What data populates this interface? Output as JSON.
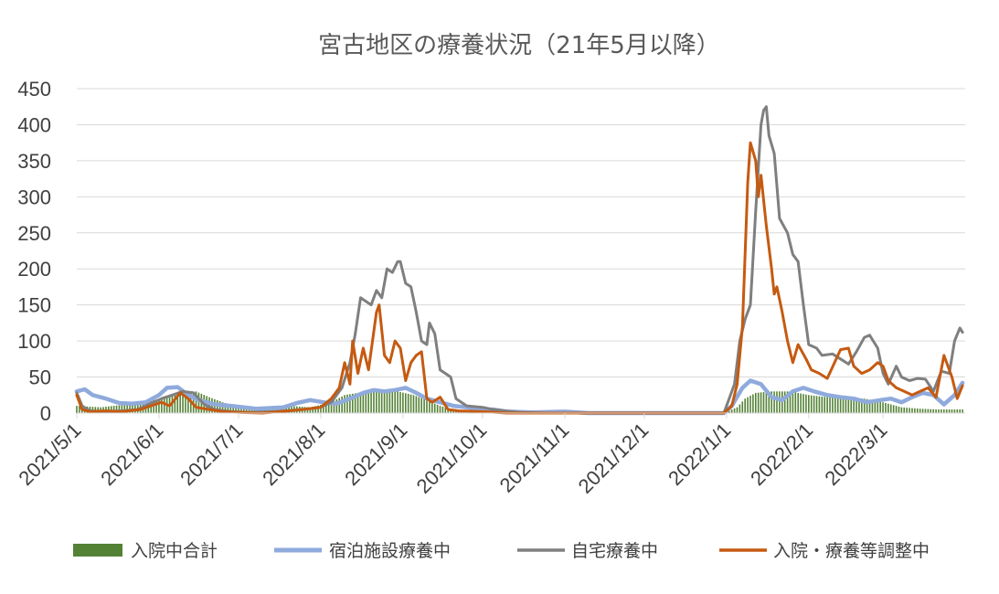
{
  "chart_data": {
    "type": "line",
    "title": "宮古地区の療養状況（21年5月以降）",
    "ylim": [
      0,
      450
    ],
    "yticks": [
      0,
      50,
      100,
      150,
      200,
      250,
      300,
      350,
      400,
      450
    ],
    "x_start": "2021-05-01",
    "x_end": "2022-03-31",
    "xticks": [
      "2021/5/1",
      "2021/6/1",
      "2021/7/1",
      "2021/8/1",
      "2021/9/1",
      "2021/10/1",
      "2021/11/1",
      "2021/12/1",
      "2022/1/1",
      "2022/2/1",
      "2022/3/1"
    ],
    "grid": true,
    "legend_position": "bottom",
    "series": [
      {
        "name": "入院中合計",
        "kind": "bar",
        "color": "#548235",
        "points": [
          [
            "2021-05-01",
            10
          ],
          [
            "2021-05-10",
            8
          ],
          [
            "2021-05-20",
            12
          ],
          [
            "2021-05-28",
            18
          ],
          [
            "2021-06-03",
            20
          ],
          [
            "2021-06-10",
            28
          ],
          [
            "2021-06-15",
            30
          ],
          [
            "2021-06-20",
            22
          ],
          [
            "2021-06-25",
            15
          ],
          [
            "2021-07-01",
            8
          ],
          [
            "2021-07-10",
            6
          ],
          [
            "2021-07-20",
            10
          ],
          [
            "2021-07-28",
            8
          ],
          [
            "2021-08-05",
            15
          ],
          [
            "2021-08-10",
            25
          ],
          [
            "2021-08-15",
            28
          ],
          [
            "2021-08-20",
            30
          ],
          [
            "2021-08-25",
            32
          ],
          [
            "2021-08-30",
            30
          ],
          [
            "2021-09-05",
            25
          ],
          [
            "2021-09-10",
            18
          ],
          [
            "2021-09-15",
            10
          ],
          [
            "2021-09-20",
            5
          ],
          [
            "2021-09-30",
            2
          ],
          [
            "2021-10-10",
            0
          ],
          [
            "2021-12-31",
            0
          ],
          [
            "2022-01-05",
            8
          ],
          [
            "2022-01-08",
            20
          ],
          [
            "2022-01-12",
            28
          ],
          [
            "2022-01-18",
            30
          ],
          [
            "2022-01-25",
            30
          ],
          [
            "2022-02-01",
            25
          ],
          [
            "2022-02-08",
            22
          ],
          [
            "2022-02-15",
            22
          ],
          [
            "2022-02-22",
            20
          ],
          [
            "2022-03-01",
            15
          ],
          [
            "2022-03-08",
            8
          ],
          [
            "2022-03-15",
            6
          ],
          [
            "2022-03-22",
            5
          ],
          [
            "2022-03-31",
            5
          ]
        ]
      },
      {
        "name": "宿泊施設療養中",
        "kind": "line",
        "color": "#8faadc",
        "points": [
          [
            "2021-05-01",
            30
          ],
          [
            "2021-05-04",
            33
          ],
          [
            "2021-05-07",
            25
          ],
          [
            "2021-05-12",
            20
          ],
          [
            "2021-05-17",
            14
          ],
          [
            "2021-05-22",
            13
          ],
          [
            "2021-05-27",
            15
          ],
          [
            "2021-06-01",
            25
          ],
          [
            "2021-06-04",
            35
          ],
          [
            "2021-06-08",
            36
          ],
          [
            "2021-06-12",
            25
          ],
          [
            "2021-06-16",
            18
          ],
          [
            "2021-06-22",
            12
          ],
          [
            "2021-06-28",
            10
          ],
          [
            "2021-07-03",
            8
          ],
          [
            "2021-07-08",
            6
          ],
          [
            "2021-07-13",
            7
          ],
          [
            "2021-07-18",
            8
          ],
          [
            "2021-07-23",
            14
          ],
          [
            "2021-07-28",
            18
          ],
          [
            "2021-08-02",
            15
          ],
          [
            "2021-08-07",
            13
          ],
          [
            "2021-08-12",
            20
          ],
          [
            "2021-08-17",
            28
          ],
          [
            "2021-08-21",
            32
          ],
          [
            "2021-08-25",
            30
          ],
          [
            "2021-08-29",
            32
          ],
          [
            "2021-09-02",
            35
          ],
          [
            "2021-09-06",
            28
          ],
          [
            "2021-09-10",
            20
          ],
          [
            "2021-09-15",
            15
          ],
          [
            "2021-09-20",
            10
          ],
          [
            "2021-09-25",
            8
          ],
          [
            "2021-10-01",
            5
          ],
          [
            "2021-10-05",
            5
          ],
          [
            "2021-10-10",
            2
          ],
          [
            "2021-10-20",
            1
          ],
          [
            "2021-11-01",
            2
          ],
          [
            "2021-11-10",
            0
          ],
          [
            "2021-12-31",
            0
          ],
          [
            "2022-01-03",
            10
          ],
          [
            "2022-01-07",
            35
          ],
          [
            "2022-01-10",
            45
          ],
          [
            "2022-01-14",
            40
          ],
          [
            "2022-01-18",
            22
          ],
          [
            "2022-01-22",
            18
          ],
          [
            "2022-01-26",
            30
          ],
          [
            "2022-01-30",
            35
          ],
          [
            "2022-02-03",
            30
          ],
          [
            "2022-02-08",
            25
          ],
          [
            "2022-02-13",
            22
          ],
          [
            "2022-02-18",
            20
          ],
          [
            "2022-02-23",
            15
          ],
          [
            "2022-02-28",
            18
          ],
          [
            "2022-03-04",
            20
          ],
          [
            "2022-03-08",
            15
          ],
          [
            "2022-03-12",
            22
          ],
          [
            "2022-03-16",
            28
          ],
          [
            "2022-03-20",
            25
          ],
          [
            "2022-03-24",
            12
          ],
          [
            "2022-03-28",
            25
          ],
          [
            "2022-03-31",
            42
          ]
        ]
      },
      {
        "name": "自宅療養中",
        "kind": "line",
        "color": "#7f7f7f",
        "points": [
          [
            "2021-05-01",
            28
          ],
          [
            "2021-05-03",
            10
          ],
          [
            "2021-05-06",
            3
          ],
          [
            "2021-05-12",
            2
          ],
          [
            "2021-05-18",
            3
          ],
          [
            "2021-05-24",
            5
          ],
          [
            "2021-05-28",
            12
          ],
          [
            "2021-06-02",
            20
          ],
          [
            "2021-06-06",
            25
          ],
          [
            "2021-06-10",
            30
          ],
          [
            "2021-06-14",
            28
          ],
          [
            "2021-06-18",
            12
          ],
          [
            "2021-06-22",
            5
          ],
          [
            "2021-06-28",
            2
          ],
          [
            "2021-07-05",
            1
          ],
          [
            "2021-07-15",
            2
          ],
          [
            "2021-07-25",
            5
          ],
          [
            "2021-08-01",
            8
          ],
          [
            "2021-08-05",
            15
          ],
          [
            "2021-08-09",
            35
          ],
          [
            "2021-08-12",
            70
          ],
          [
            "2021-08-14",
            110
          ],
          [
            "2021-08-16",
            160
          ],
          [
            "2021-08-18",
            155
          ],
          [
            "2021-08-20",
            150
          ],
          [
            "2021-08-22",
            170
          ],
          [
            "2021-08-24",
            160
          ],
          [
            "2021-08-26",
            200
          ],
          [
            "2021-08-28",
            195
          ],
          [
            "2021-08-30",
            210
          ],
          [
            "2021-08-31",
            210
          ],
          [
            "2021-09-02",
            180
          ],
          [
            "2021-09-04",
            175
          ],
          [
            "2021-09-06",
            140
          ],
          [
            "2021-09-08",
            100
          ],
          [
            "2021-09-10",
            95
          ],
          [
            "2021-09-11",
            125
          ],
          [
            "2021-09-13",
            110
          ],
          [
            "2021-09-15",
            60
          ],
          [
            "2021-09-17",
            55
          ],
          [
            "2021-09-19",
            50
          ],
          [
            "2021-09-21",
            20
          ],
          [
            "2021-09-25",
            10
          ],
          [
            "2021-10-01",
            8
          ],
          [
            "2021-10-05",
            5
          ],
          [
            "2021-10-10",
            3
          ],
          [
            "2021-10-15",
            1
          ],
          [
            "2021-10-25",
            0
          ],
          [
            "2021-12-31",
            0
          ],
          [
            "2022-01-04",
            40
          ],
          [
            "2022-01-06",
            100
          ],
          [
            "2022-01-08",
            130
          ],
          [
            "2022-01-10",
            150
          ],
          [
            "2022-01-12",
            280
          ],
          [
            "2022-01-14",
            400
          ],
          [
            "2022-01-15",
            420
          ],
          [
            "2022-01-16",
            425
          ],
          [
            "2022-01-17",
            385
          ],
          [
            "2022-01-19",
            360
          ],
          [
            "2022-01-21",
            270
          ],
          [
            "2022-01-24",
            250
          ],
          [
            "2022-01-26",
            220
          ],
          [
            "2022-01-28",
            210
          ],
          [
            "2022-01-30",
            150
          ],
          [
            "2022-02-01",
            95
          ],
          [
            "2022-02-04",
            90
          ],
          [
            "2022-02-06",
            80
          ],
          [
            "2022-02-10",
            82
          ],
          [
            "2022-02-13",
            75
          ],
          [
            "2022-02-16",
            68
          ],
          [
            "2022-02-19",
            85
          ],
          [
            "2022-02-22",
            105
          ],
          [
            "2022-02-24",
            108
          ],
          [
            "2022-02-27",
            90
          ],
          [
            "2022-03-01",
            55
          ],
          [
            "2022-03-03",
            40
          ],
          [
            "2022-03-06",
            65
          ],
          [
            "2022-03-08",
            50
          ],
          [
            "2022-03-11",
            45
          ],
          [
            "2022-03-14",
            48
          ],
          [
            "2022-03-17",
            47
          ],
          [
            "2022-03-20",
            30
          ],
          [
            "2022-03-23",
            58
          ],
          [
            "2022-03-26",
            55
          ],
          [
            "2022-03-28",
            100
          ],
          [
            "2022-03-30",
            118
          ],
          [
            "2022-03-31",
            112
          ]
        ]
      },
      {
        "name": "入院・療養等調整中",
        "kind": "line",
        "color": "#c55a11",
        "points": [
          [
            "2021-05-01",
            25
          ],
          [
            "2021-05-03",
            5
          ],
          [
            "2021-05-06",
            2
          ],
          [
            "2021-05-12",
            3
          ],
          [
            "2021-05-18",
            2
          ],
          [
            "2021-05-25",
            5
          ],
          [
            "2021-05-29",
            10
          ],
          [
            "2021-06-02",
            15
          ],
          [
            "2021-06-05",
            10
          ],
          [
            "2021-06-09",
            28
          ],
          [
            "2021-06-12",
            20
          ],
          [
            "2021-06-15",
            8
          ],
          [
            "2021-06-20",
            5
          ],
          [
            "2021-06-25",
            2
          ],
          [
            "2021-07-01",
            1
          ],
          [
            "2021-07-10",
            0
          ],
          [
            "2021-07-20",
            3
          ],
          [
            "2021-07-25",
            5
          ],
          [
            "2021-08-01",
            8
          ],
          [
            "2021-08-05",
            20
          ],
          [
            "2021-08-08",
            35
          ],
          [
            "2021-08-10",
            70
          ],
          [
            "2021-08-12",
            40
          ],
          [
            "2021-08-13",
            100
          ],
          [
            "2021-08-15",
            55
          ],
          [
            "2021-08-17",
            90
          ],
          [
            "2021-08-19",
            60
          ],
          [
            "2021-08-22",
            140
          ],
          [
            "2021-08-23",
            150
          ],
          [
            "2021-08-25",
            80
          ],
          [
            "2021-08-27",
            70
          ],
          [
            "2021-08-29",
            100
          ],
          [
            "2021-08-31",
            90
          ],
          [
            "2021-09-02",
            45
          ],
          [
            "2021-09-04",
            70
          ],
          [
            "2021-09-06",
            80
          ],
          [
            "2021-09-08",
            85
          ],
          [
            "2021-09-10",
            20
          ],
          [
            "2021-09-12",
            15
          ],
          [
            "2021-09-15",
            22
          ],
          [
            "2021-09-18",
            5
          ],
          [
            "2021-09-22",
            3
          ],
          [
            "2021-10-01",
            2
          ],
          [
            "2021-10-10",
            0
          ],
          [
            "2021-12-31",
            0
          ],
          [
            "2022-01-03",
            10
          ],
          [
            "2022-01-05",
            40
          ],
          [
            "2022-01-07",
            120
          ],
          [
            "2022-01-09",
            320
          ],
          [
            "2022-01-10",
            375
          ],
          [
            "2022-01-12",
            350
          ],
          [
            "2022-01-13",
            300
          ],
          [
            "2022-01-14",
            330
          ],
          [
            "2022-01-16",
            260
          ],
          [
            "2022-01-18",
            200
          ],
          [
            "2022-01-19",
            165
          ],
          [
            "2022-01-20",
            175
          ],
          [
            "2022-01-22",
            140
          ],
          [
            "2022-01-24",
            100
          ],
          [
            "2022-01-26",
            70
          ],
          [
            "2022-01-28",
            95
          ],
          [
            "2022-01-31",
            75
          ],
          [
            "2022-02-02",
            60
          ],
          [
            "2022-02-05",
            55
          ],
          [
            "2022-02-08",
            48
          ],
          [
            "2022-02-11",
            72
          ],
          [
            "2022-02-13",
            88
          ],
          [
            "2022-02-16",
            90
          ],
          [
            "2022-02-18",
            65
          ],
          [
            "2022-02-21",
            55
          ],
          [
            "2022-02-24",
            60
          ],
          [
            "2022-02-27",
            70
          ],
          [
            "2022-03-01",
            65
          ],
          [
            "2022-03-03",
            45
          ],
          [
            "2022-03-06",
            35
          ],
          [
            "2022-03-09",
            30
          ],
          [
            "2022-03-12",
            25
          ],
          [
            "2022-03-15",
            30
          ],
          [
            "2022-03-18",
            35
          ],
          [
            "2022-03-21",
            22
          ],
          [
            "2022-03-24",
            80
          ],
          [
            "2022-03-27",
            50
          ],
          [
            "2022-03-29",
            20
          ],
          [
            "2022-03-31",
            38
          ]
        ]
      }
    ]
  }
}
